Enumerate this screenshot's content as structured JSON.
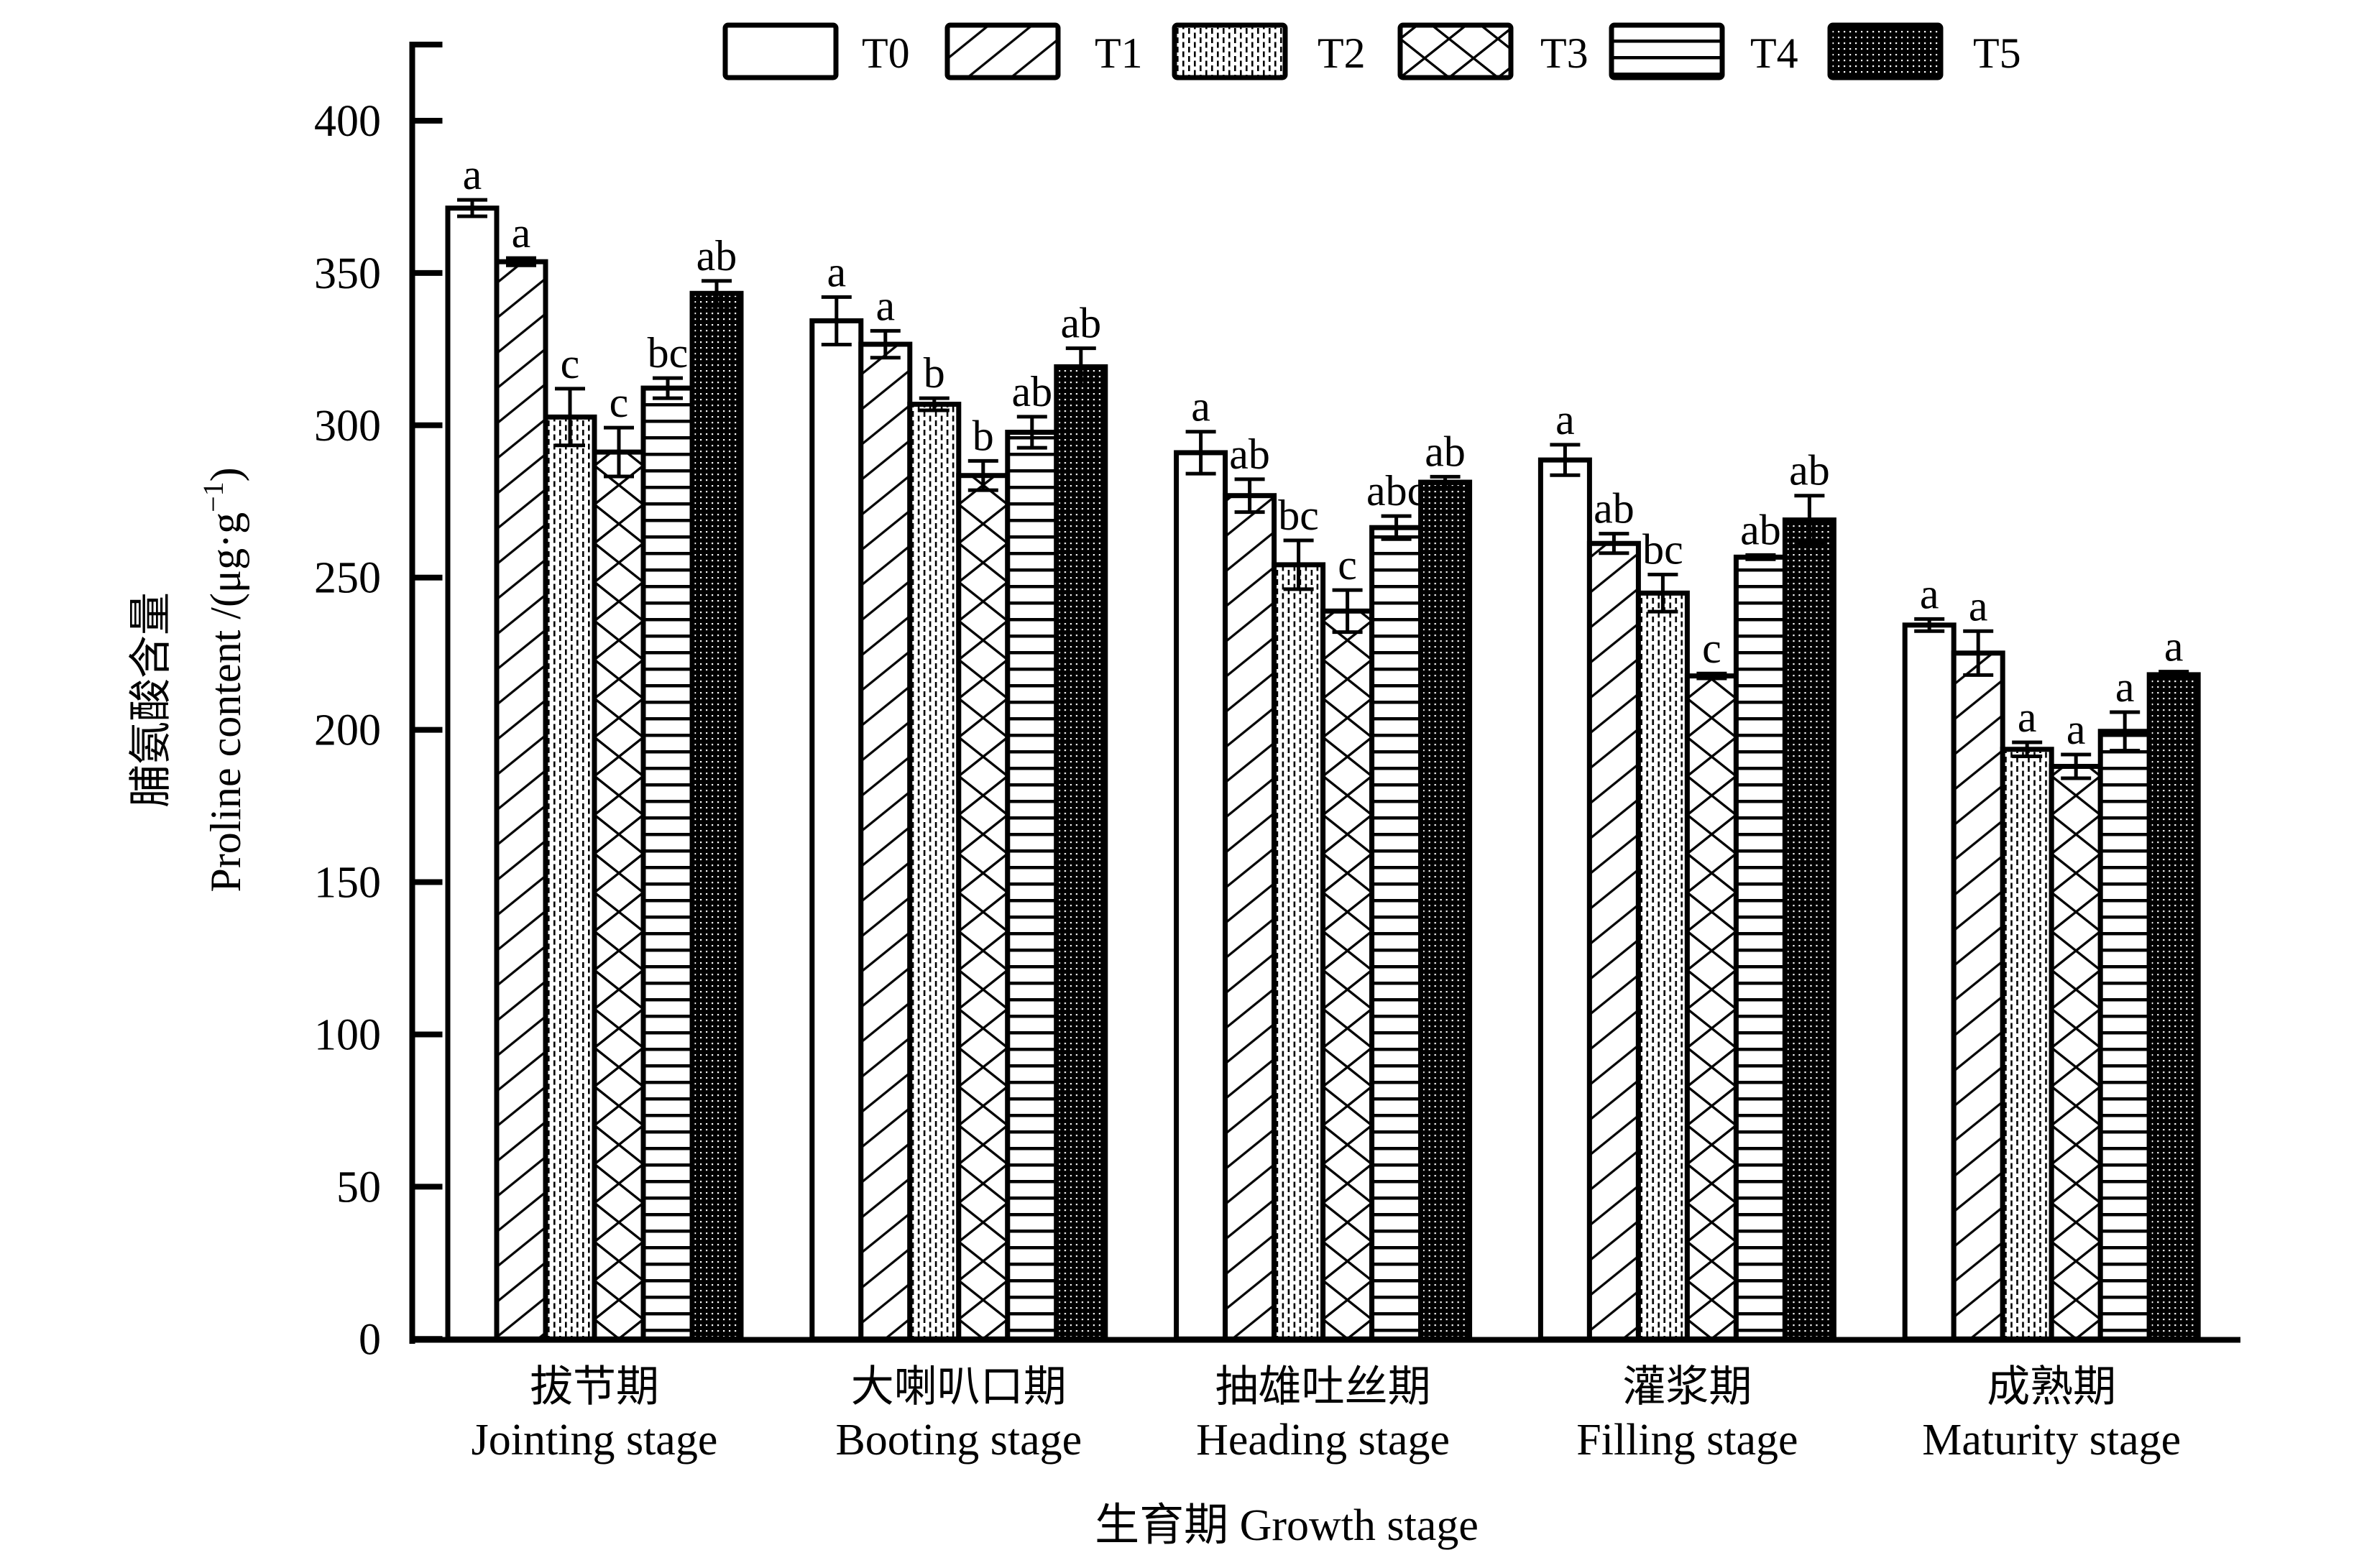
{
  "chart_data": {
    "type": "bar",
    "title": "",
    "xlabel": "生育期 Growth stage",
    "ylabel": {
      "cn": "脯氨酸含量",
      "en": "Proline content /(μg·g",
      "en_sup": "−1",
      "en_end": ")"
    },
    "ylim": [
      0,
      425
    ],
    "yticks": [
      0,
      50,
      100,
      150,
      200,
      250,
      300,
      350,
      400
    ],
    "ytick_labels": [
      "0",
      "50",
      "100",
      "150",
      "200",
      "250",
      "300",
      "350",
      "400"
    ],
    "categories": [
      "Jointing stage",
      "Booting stage",
      "Heading stage",
      "Filling stage",
      "Maturity stage"
    ],
    "categories_cn": [
      "拔节期",
      "大喇叭口期",
      "抽雄吐丝期",
      "灌浆期",
      "成熟期"
    ],
    "series": [
      {
        "name": "T0",
        "pattern": "blank",
        "values": [
          371.3,
          334.3,
          291.0,
          288.6,
          234.4
        ],
        "errors": [
          2.7,
          7.8,
          6.9,
          5.0,
          2.0
        ],
        "letters": [
          "a",
          "a",
          "a",
          "a",
          "a"
        ]
      },
      {
        "name": "T1",
        "pattern": "diagonal",
        "values": [
          353.7,
          326.6,
          276.9,
          261.2,
          225.2
        ],
        "errors": [
          1.2,
          4.4,
          5.4,
          3.2,
          7.2
        ],
        "letters": [
          "a",
          "a",
          "ab",
          "ab",
          "a"
        ]
      },
      {
        "name": "T2",
        "pattern": "dash",
        "values": [
          302.7,
          306.9,
          254.2,
          244.9,
          193.6
        ],
        "errors": [
          9.3,
          2.0,
          8.0,
          6.1,
          2.3
        ],
        "letters": [
          "c",
          "b",
          "bc",
          "bc",
          "a"
        ]
      },
      {
        "name": "T3",
        "pattern": "cross",
        "values": [
          291.2,
          283.5,
          239.0,
          217.7,
          188.0
        ],
        "errors": [
          8.0,
          4.8,
          6.9,
          0.8,
          3.9
        ],
        "letters": [
          "c",
          "b",
          "c",
          "c",
          "a"
        ]
      },
      {
        "name": "T4",
        "pattern": "hlines",
        "values": [
          312.2,
          297.7,
          266.4,
          256.7,
          199.5
        ],
        "errors": [
          3.3,
          5.1,
          3.8,
          0.7,
          6.3
        ],
        "letters": [
          "bc",
          "ab",
          "abc",
          "ab",
          "a"
        ]
      },
      {
        "name": "T5",
        "pattern": "dots",
        "values": [
          343.3,
          319.2,
          281.3,
          268.9,
          218.1
        ],
        "errors": [
          4.1,
          6.1,
          1.8,
          8.0,
          1.0
        ],
        "letters": [
          "ab",
          "ab",
          "ab",
          "ab",
          "a"
        ]
      }
    ],
    "legend": "top",
    "grid": false,
    "error_bars": true
  }
}
